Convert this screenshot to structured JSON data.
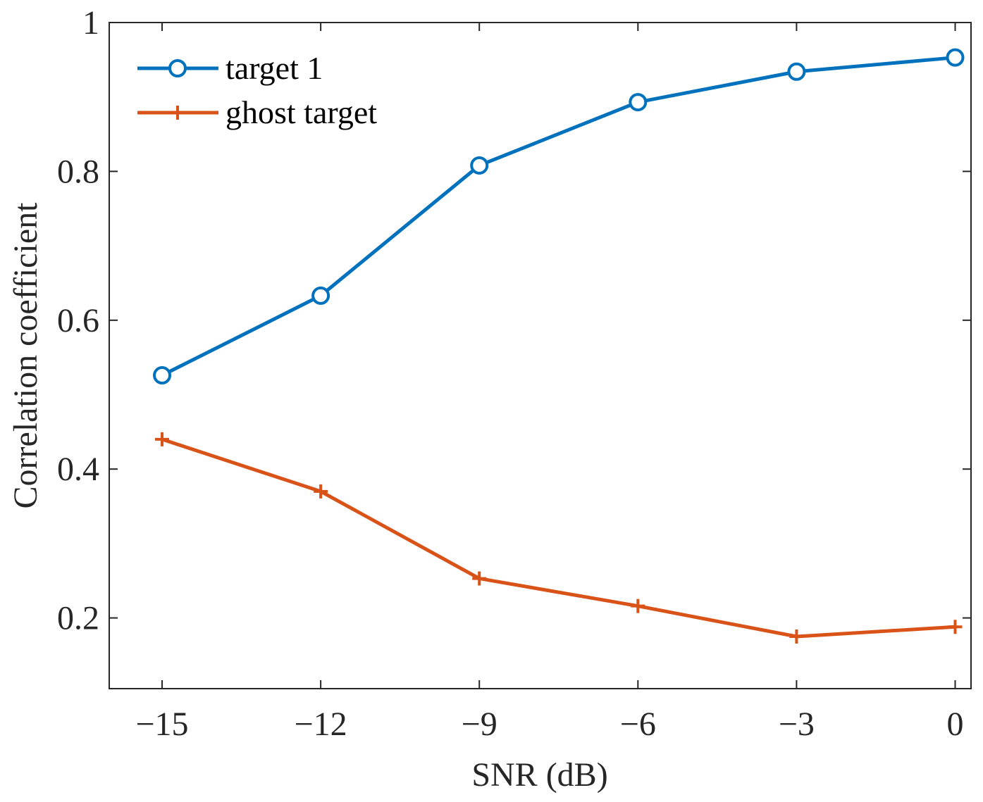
{
  "chart_data": {
    "type": "line",
    "title": "",
    "xlabel": "SNR (dB)",
    "ylabel": "Correlation coefficient",
    "xlim": [
      -16,
      0.3
    ],
    "ylim": [
      0.105,
      1.0
    ],
    "x": [
      -15,
      -12,
      -9,
      -6,
      -3,
      0
    ],
    "xticks": [
      -15,
      -12,
      -9,
      -6,
      -3,
      0
    ],
    "xtick_labels": [
      "−15",
      "−12",
      "−9",
      "−6",
      "−3",
      "0"
    ],
    "yticks": [
      0.2,
      0.4,
      0.6,
      0.8,
      1.0
    ],
    "ytick_labels": [
      "0.2",
      "0.4",
      "0.6",
      "0.8",
      "1"
    ],
    "grid": false,
    "legend_position": "top-left",
    "series": [
      {
        "name": "target 1",
        "marker": "circle",
        "color": "#0072BD",
        "values": [
          0.526,
          0.633,
          0.808,
          0.893,
          0.934,
          0.953
        ]
      },
      {
        "name": "ghost target",
        "marker": "plus",
        "color": "#D95319",
        "values": [
          0.44,
          0.37,
          0.253,
          0.216,
          0.175,
          0.188
        ]
      }
    ]
  }
}
